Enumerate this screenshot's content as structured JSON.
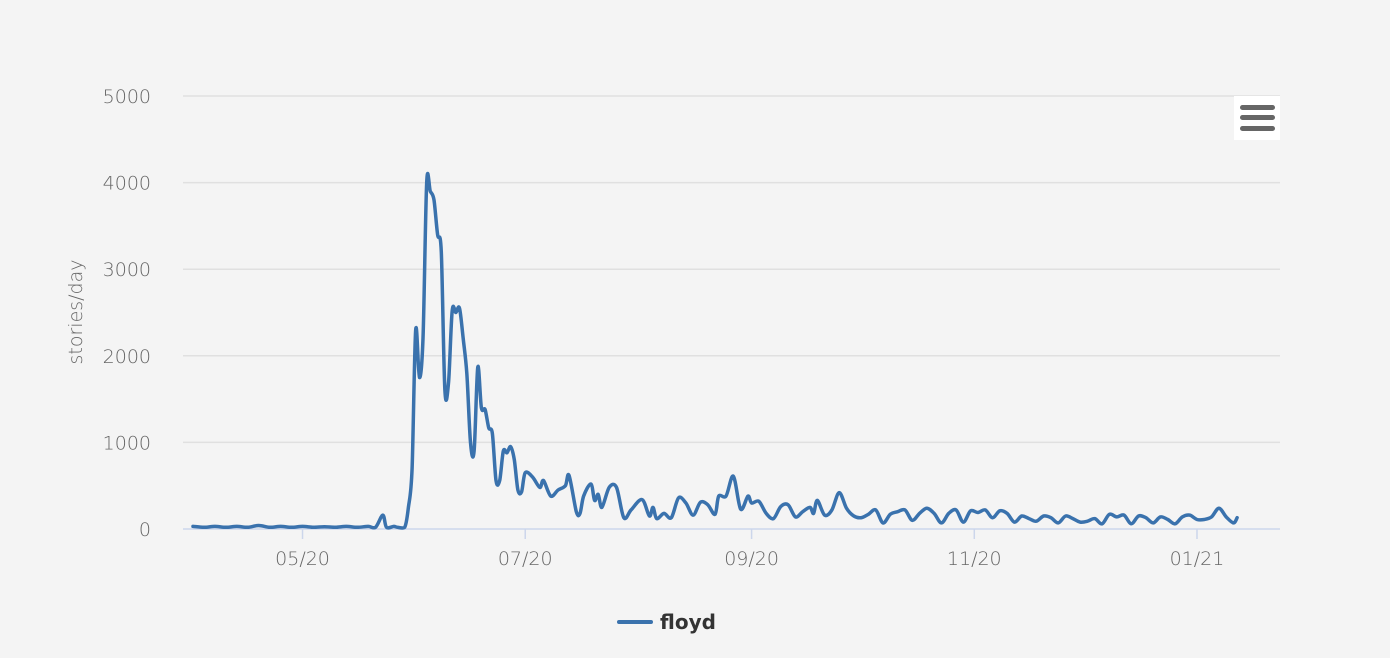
{
  "chart_data": {
    "type": "line",
    "title": "",
    "xlabel": "",
    "ylabel": "stories/day",
    "ylim": [
      0,
      5000
    ],
    "y_ticks": [
      0,
      1000,
      2000,
      3000,
      4000,
      5000
    ],
    "y_tick_labels": [
      "0",
      "1000",
      "2000",
      "3000",
      "4000",
      "5000"
    ],
    "xlim": [
      "2020-04-01",
      "2021-01-21"
    ],
    "x_ticks": [
      "2020-05-01",
      "2020-07-01",
      "2020-09-01",
      "2020-11-01",
      "2021-01-01"
    ],
    "x_tick_labels": [
      "05/20",
      "07/20",
      "09/20",
      "11/20",
      "01/21"
    ],
    "grid": true,
    "legend_position": "bottom-center",
    "series": [
      {
        "name": "floyd",
        "color": "#3a72ad",
        "points": [
          [
            "2020-04-01",
            30
          ],
          [
            "2020-04-04",
            20
          ],
          [
            "2020-04-07",
            30
          ],
          [
            "2020-04-10",
            20
          ],
          [
            "2020-04-13",
            30
          ],
          [
            "2020-04-16",
            20
          ],
          [
            "2020-04-19",
            40
          ],
          [
            "2020-04-22",
            20
          ],
          [
            "2020-04-25",
            30
          ],
          [
            "2020-04-28",
            20
          ],
          [
            "2020-05-01",
            30
          ],
          [
            "2020-05-04",
            20
          ],
          [
            "2020-05-07",
            25
          ],
          [
            "2020-05-10",
            20
          ],
          [
            "2020-05-13",
            30
          ],
          [
            "2020-05-16",
            20
          ],
          [
            "2020-05-19",
            30
          ],
          [
            "2020-05-21",
            20
          ],
          [
            "2020-05-23",
            160
          ],
          [
            "2020-05-24",
            20
          ],
          [
            "2020-05-26",
            30
          ],
          [
            "2020-05-27",
            20
          ],
          [
            "2020-05-29",
            20
          ],
          [
            "2020-05-30",
            250
          ],
          [
            "2020-05-31",
            700
          ],
          [
            "2020-06-01",
            2300
          ],
          [
            "2020-06-02",
            1750
          ],
          [
            "2020-06-03",
            2200
          ],
          [
            "2020-06-04",
            4000
          ],
          [
            "2020-06-05",
            3900
          ],
          [
            "2020-06-06",
            3800
          ],
          [
            "2020-06-07",
            3400
          ],
          [
            "2020-06-08",
            3200
          ],
          [
            "2020-06-09",
            1600
          ],
          [
            "2020-06-10",
            1700
          ],
          [
            "2020-06-11",
            2520
          ],
          [
            "2020-06-12",
            2500
          ],
          [
            "2020-06-13",
            2550
          ],
          [
            "2020-06-14",
            2200
          ],
          [
            "2020-06-15",
            1800
          ],
          [
            "2020-06-16",
            1000
          ],
          [
            "2020-06-17",
            900
          ],
          [
            "2020-06-18",
            1870
          ],
          [
            "2020-06-19",
            1400
          ],
          [
            "2020-06-20",
            1380
          ],
          [
            "2020-06-21",
            1170
          ],
          [
            "2020-06-22",
            1100
          ],
          [
            "2020-06-23",
            560
          ],
          [
            "2020-06-24",
            560
          ],
          [
            "2020-06-25",
            900
          ],
          [
            "2020-06-26",
            880
          ],
          [
            "2020-06-27",
            950
          ],
          [
            "2020-06-28",
            800
          ],
          [
            "2020-06-29",
            450
          ],
          [
            "2020-06-30",
            430
          ],
          [
            "2020-07-01",
            650
          ],
          [
            "2020-07-03",
            600
          ],
          [
            "2020-07-05",
            480
          ],
          [
            "2020-07-06",
            560
          ],
          [
            "2020-07-08",
            380
          ],
          [
            "2020-07-10",
            450
          ],
          [
            "2020-07-12",
            500
          ],
          [
            "2020-07-13",
            620
          ],
          [
            "2020-07-15",
            200
          ],
          [
            "2020-07-16",
            180
          ],
          [
            "2020-07-17",
            380
          ],
          [
            "2020-07-19",
            520
          ],
          [
            "2020-07-20",
            330
          ],
          [
            "2020-07-21",
            400
          ],
          [
            "2020-07-22",
            250
          ],
          [
            "2020-07-24",
            480
          ],
          [
            "2020-07-26",
            480
          ],
          [
            "2020-07-28",
            130
          ],
          [
            "2020-07-30",
            220
          ],
          [
            "2020-08-02",
            340
          ],
          [
            "2020-08-04",
            150
          ],
          [
            "2020-08-05",
            250
          ],
          [
            "2020-08-06",
            120
          ],
          [
            "2020-08-08",
            180
          ],
          [
            "2020-08-10",
            130
          ],
          [
            "2020-08-12",
            360
          ],
          [
            "2020-08-14",
            300
          ],
          [
            "2020-08-16",
            160
          ],
          [
            "2020-08-18",
            310
          ],
          [
            "2020-08-20",
            280
          ],
          [
            "2020-08-22",
            170
          ],
          [
            "2020-08-23",
            380
          ],
          [
            "2020-08-25",
            380
          ],
          [
            "2020-08-27",
            610
          ],
          [
            "2020-08-29",
            230
          ],
          [
            "2020-08-31",
            380
          ],
          [
            "2020-09-01",
            300
          ],
          [
            "2020-09-03",
            320
          ],
          [
            "2020-09-05",
            180
          ],
          [
            "2020-09-07",
            120
          ],
          [
            "2020-09-09",
            260
          ],
          [
            "2020-09-11",
            280
          ],
          [
            "2020-09-13",
            140
          ],
          [
            "2020-09-15",
            200
          ],
          [
            "2020-09-17",
            250
          ],
          [
            "2020-09-18",
            180
          ],
          [
            "2020-09-19",
            330
          ],
          [
            "2020-09-21",
            160
          ],
          [
            "2020-09-23",
            220
          ],
          [
            "2020-09-25",
            420
          ],
          [
            "2020-09-27",
            240
          ],
          [
            "2020-09-29",
            150
          ],
          [
            "2020-10-01",
            130
          ],
          [
            "2020-10-03",
            170
          ],
          [
            "2020-10-05",
            220
          ],
          [
            "2020-10-07",
            70
          ],
          [
            "2020-10-09",
            170
          ],
          [
            "2020-10-11",
            200
          ],
          [
            "2020-10-13",
            220
          ],
          [
            "2020-10-15",
            100
          ],
          [
            "2020-10-17",
            180
          ],
          [
            "2020-10-19",
            240
          ],
          [
            "2020-10-21",
            180
          ],
          [
            "2020-10-23",
            70
          ],
          [
            "2020-10-25",
            180
          ],
          [
            "2020-10-27",
            220
          ],
          [
            "2020-10-29",
            80
          ],
          [
            "2020-10-31",
            210
          ],
          [
            "2020-11-02",
            190
          ],
          [
            "2020-11-04",
            220
          ],
          [
            "2020-11-06",
            130
          ],
          [
            "2020-11-08",
            210
          ],
          [
            "2020-11-10",
            180
          ],
          [
            "2020-11-12",
            80
          ],
          [
            "2020-11-14",
            150
          ],
          [
            "2020-11-16",
            120
          ],
          [
            "2020-11-18",
            90
          ],
          [
            "2020-11-20",
            150
          ],
          [
            "2020-11-22",
            130
          ],
          [
            "2020-11-24",
            70
          ],
          [
            "2020-11-26",
            150
          ],
          [
            "2020-11-28",
            120
          ],
          [
            "2020-11-30",
            80
          ],
          [
            "2020-12-02",
            90
          ],
          [
            "2020-12-04",
            120
          ],
          [
            "2020-12-06",
            60
          ],
          [
            "2020-12-08",
            170
          ],
          [
            "2020-12-10",
            140
          ],
          [
            "2020-12-12",
            160
          ],
          [
            "2020-12-14",
            60
          ],
          [
            "2020-12-16",
            150
          ],
          [
            "2020-12-18",
            130
          ],
          [
            "2020-12-20",
            70
          ],
          [
            "2020-12-22",
            140
          ],
          [
            "2020-12-24",
            110
          ],
          [
            "2020-12-26",
            60
          ],
          [
            "2020-12-28",
            140
          ],
          [
            "2020-12-30",
            160
          ],
          [
            "2021-01-01",
            110
          ],
          [
            "2021-01-03",
            110
          ],
          [
            "2021-01-05",
            140
          ],
          [
            "2021-01-07",
            240
          ],
          [
            "2021-01-09",
            140
          ],
          [
            "2021-01-11",
            70
          ],
          [
            "2021-01-12",
            130
          ]
        ]
      }
    ]
  },
  "menu": {
    "icon": "hamburger-menu-icon"
  }
}
